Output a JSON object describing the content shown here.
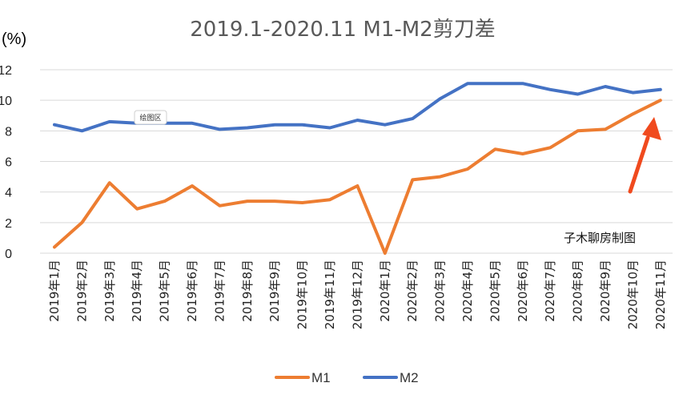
{
  "chart_data": {
    "type": "line",
    "title": "2019.1-2020.11 M1-M2剪刀差",
    "ylabel": "(%)",
    "xlabel": "",
    "ylim": [
      0,
      12
    ],
    "yticks": [
      "0",
      "2",
      "4",
      "6",
      "8",
      "10",
      "12"
    ],
    "grid": true,
    "legend_position": "bottom",
    "categories": [
      "2019年1月",
      "2019年2月",
      "2019年3月",
      "2019年4月",
      "2019年5月",
      "2019年6月",
      "2019年7月",
      "2019年8月",
      "2019年9月",
      "2019年10月",
      "2019年11月",
      "2019年12月",
      "2020年1月",
      "2020年2月",
      "2020年3月",
      "2020年4月",
      "2020年5月",
      "2020年6月",
      "2020年7月",
      "2020年8月",
      "2020年9月",
      "2020年10月",
      "2020年11月"
    ],
    "series": [
      {
        "name": "M1",
        "color": "#ED7D31",
        "values": [
          0.4,
          2.0,
          4.6,
          2.9,
          3.4,
          4.4,
          3.1,
          3.4,
          3.4,
          3.3,
          3.5,
          4.4,
          0.0,
          4.8,
          5.0,
          5.5,
          6.8,
          6.5,
          6.9,
          8.0,
          8.1,
          9.1,
          10.0
        ]
      },
      {
        "name": "M2",
        "color": "#4472C4",
        "values": [
          8.4,
          8.0,
          8.6,
          8.5,
          8.5,
          8.5,
          8.1,
          8.2,
          8.4,
          8.4,
          8.2,
          8.7,
          8.4,
          8.8,
          10.1,
          11.1,
          11.1,
          11.1,
          10.7,
          10.4,
          10.9,
          10.5,
          10.7
        ]
      }
    ]
  },
  "annotations": {
    "tooltip": "绘图区",
    "credit": "子木聊房制图",
    "arrow_color": "#F04A1E"
  }
}
